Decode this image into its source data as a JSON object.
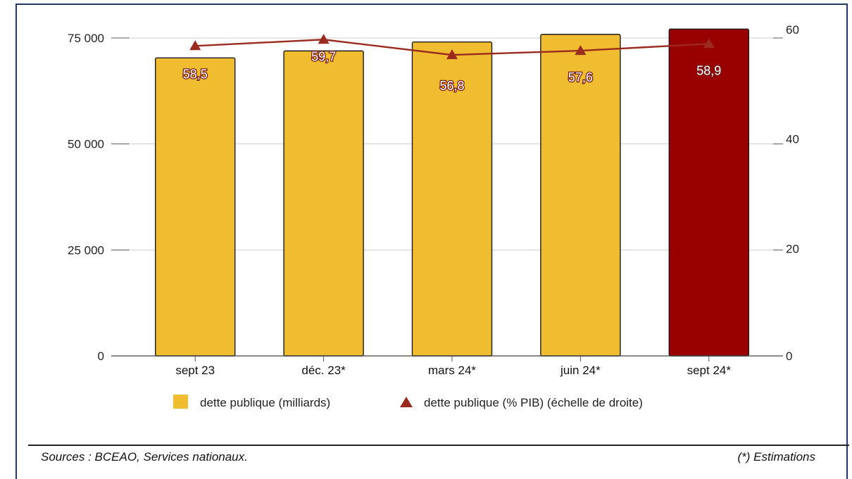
{
  "chart_data": {
    "type": "bar",
    "categories": [
      "sept 23",
      "déc. 23*",
      "mars 24*",
      "juin 24*",
      "sept 24*"
    ],
    "series": [
      {
        "name": "dette publique (milliards)",
        "kind": "bar",
        "axis": "left",
        "values": [
          70300,
          71950,
          74050,
          75850,
          77100
        ],
        "colors": [
          "#f0bd31",
          "#f0bd31",
          "#f0bd31",
          "#f0bd31",
          "#990000"
        ]
      },
      {
        "name": "dette publique (% PIB) (échelle de droite)",
        "kind": "line",
        "axis": "right",
        "values": [
          58.5,
          59.7,
          56.8,
          57.6,
          58.9
        ],
        "labels": [
          "58,5",
          "59,7",
          "56,8",
          "57,6",
          "58,9"
        ],
        "color": "#9b2a1f"
      }
    ],
    "y_left": {
      "ylim": [
        0,
        75000
      ],
      "ticks": [
        0,
        25000,
        50000,
        75000
      ],
      "tick_labels": [
        "0",
        "25 000",
        "50 000",
        "75 000"
      ]
    },
    "y_right": {
      "ylim": [
        0,
        60
      ],
      "ticks": [
        0,
        20,
        40,
        60
      ],
      "tick_labels": [
        "0",
        "20",
        "40",
        "60"
      ]
    },
    "grid": true,
    "legend_position": "bottom"
  },
  "footer": {
    "sources": "Sources : BCEAO, Services nationaux.",
    "note": "(*) Estimations"
  }
}
